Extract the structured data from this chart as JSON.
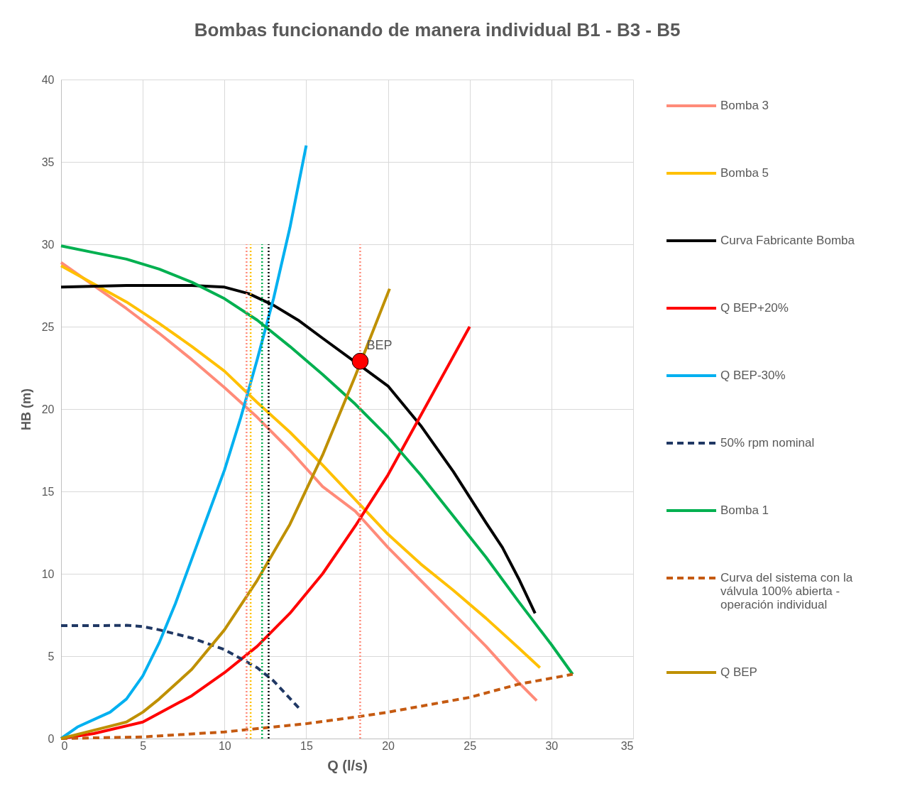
{
  "chart_data": {
    "type": "line",
    "title": "Bombas funcionando de manera individual B1 - B3 - B5",
    "xlabel": "Q (l/s)",
    "ylabel": "HB (m)",
    "xlim": [
      0,
      35
    ],
    "ylim": [
      0,
      40
    ],
    "xticks": [
      0,
      5,
      10,
      15,
      20,
      25,
      30,
      35
    ],
    "yticks": [
      0,
      5,
      10,
      15,
      20,
      25,
      30,
      35,
      40
    ],
    "grid": true,
    "legend": "right",
    "line_style": "solid",
    "series": [
      {
        "name": "Bomba 3",
        "color": "#ff8b79",
        "x": [
          0,
          2,
          4,
          6,
          8,
          10,
          12,
          14,
          16,
          18,
          20,
          22,
          24,
          26,
          28,
          29.1
        ],
        "values": [
          28.9,
          27.5,
          26.1,
          24.6,
          23.0,
          21.3,
          19.5,
          17.5,
          15.3,
          13.8,
          11.6,
          9.6,
          7.6,
          5.6,
          3.4,
          2.3
        ]
      },
      {
        "name": "Bomba 5",
        "color": "#ffc000",
        "x": [
          0,
          2,
          4,
          6,
          8,
          10,
          12,
          14,
          16,
          18,
          20,
          22,
          24,
          26,
          28,
          29.3
        ],
        "values": [
          28.7,
          27.6,
          26.5,
          25.2,
          23.8,
          22.3,
          20.4,
          18.6,
          16.6,
          14.5,
          12.4,
          10.6,
          9.0,
          7.3,
          5.5,
          4.3
        ]
      },
      {
        "name": "Curva Fabricante Bomba",
        "color": "#000000",
        "x": [
          0,
          4,
          8,
          10,
          11.5,
          13,
          14.5,
          16,
          20,
          22,
          24,
          26,
          27,
          28,
          29
        ],
        "values": [
          27.4,
          27.5,
          27.5,
          27.4,
          27.0,
          26.3,
          25.4,
          24.3,
          21.4,
          19.0,
          16.2,
          13.1,
          11.6,
          9.7,
          7.6
        ]
      },
      {
        "name": "Q BEP+20%",
        "color": "#ff0000",
        "x": [
          0,
          2,
          5,
          8,
          10,
          12,
          14,
          16,
          18,
          20,
          22,
          25
        ],
        "values": [
          0,
          0.3,
          1.0,
          2.6,
          4.0,
          5.6,
          7.6,
          10.0,
          12.9,
          16.0,
          19.6,
          25.0
        ]
      },
      {
        "name": "Q BEP-30%",
        "color": "#00b0f0",
        "x": [
          0,
          1,
          3,
          4,
          5,
          6,
          7,
          8,
          9,
          10,
          11,
          12,
          13,
          14,
          15
        ],
        "values": [
          0,
          0.7,
          1.6,
          2.4,
          3.8,
          5.8,
          8.2,
          10.9,
          13.6,
          16.3,
          19.5,
          23.0,
          26.7,
          31.0,
          36.0
        ]
      },
      {
        "name": "50% rpm nominal",
        "color": "#203864",
        "line_style": "dashed",
        "x": [
          0,
          2,
          4,
          5,
          6,
          8,
          10,
          12,
          13,
          14.6
        ],
        "values": [
          6.85,
          6.85,
          6.87,
          6.8,
          6.6,
          6.1,
          5.4,
          4.3,
          3.5,
          1.8
        ]
      },
      {
        "name": "Bomba 1",
        "color": "#00b050",
        "x": [
          0,
          2,
          4,
          6,
          8,
          10,
          12,
          14,
          16,
          18,
          20,
          22,
          24,
          26,
          28,
          30,
          31.3
        ],
        "values": [
          29.9,
          29.5,
          29.1,
          28.5,
          27.7,
          26.7,
          25.4,
          23.8,
          22.1,
          20.3,
          18.3,
          16.0,
          13.5,
          11.0,
          8.3,
          5.7,
          3.9
        ]
      },
      {
        "name": "Curva del sistema con la válvula 100% abierta - operación individual",
        "color": "#c55a11",
        "line_style": "dashed",
        "x": [
          0,
          5,
          10,
          12,
          15,
          18,
          20,
          25,
          28,
          31.3
        ],
        "values": [
          0,
          0.1,
          0.4,
          0.6,
          0.9,
          1.3,
          1.6,
          2.5,
          3.3,
          3.9
        ]
      },
      {
        "name": "Q BEP",
        "color": "#bf9000",
        "x": [
          0,
          2,
          4,
          5,
          6,
          8,
          10,
          12,
          14,
          16,
          18,
          20.1
        ],
        "values": [
          0,
          0.5,
          1.0,
          1.6,
          2.4,
          4.2,
          6.6,
          9.6,
          13.0,
          17.2,
          22.0,
          27.3
        ]
      },
      {
        "color": "#ff8b79",
        "line_style": "dotted",
        "x": [
          11.35,
          11.35
        ],
        "values": [
          0,
          30
        ]
      },
      {
        "color": "#ffc000",
        "line_style": "dotted",
        "x": [
          11.6,
          11.6
        ],
        "values": [
          0,
          30
        ]
      },
      {
        "color": "#00b050",
        "line_style": "dotted",
        "x": [
          12.3,
          12.3
        ],
        "values": [
          0,
          30
        ]
      },
      {
        "color": "#000000",
        "line_style": "dotted",
        "x": [
          12.7,
          12.7
        ],
        "values": [
          0,
          30
        ]
      },
      {
        "color": "#ff8b79",
        "line_style": "dotted",
        "x": [
          18.3,
          18.3
        ],
        "values": [
          0,
          30
        ]
      },
      {
        "type": "scatter",
        "color": "#ff0000",
        "marker": "circle",
        "x": [
          18.3
        ],
        "values": [
          22.9
        ]
      }
    ],
    "annotations": [
      {
        "text": "BEP",
        "x": 18.3,
        "y": 22.9
      }
    ]
  }
}
